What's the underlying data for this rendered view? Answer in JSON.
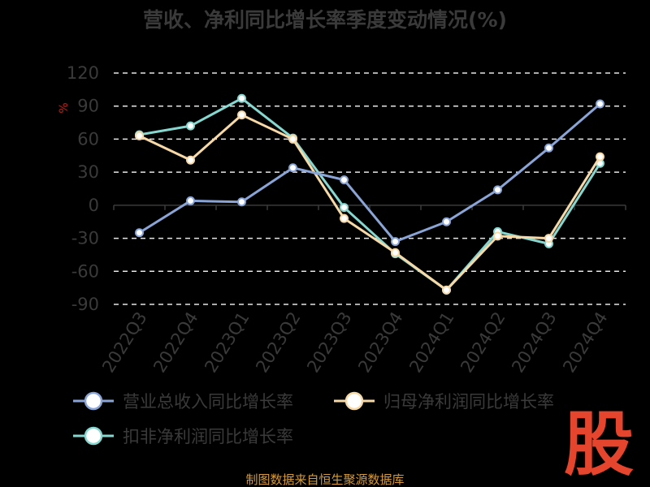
{
  "chart_data": {
    "type": "line",
    "title": "营收、净利同比增长率季度变动情况(%)",
    "unit_label": "%",
    "categories": [
      "2022Q3",
      "2022Q4",
      "2023Q1",
      "2023Q2",
      "2023Q3",
      "2023Q4",
      "2024Q1",
      "2024Q2",
      "2024Q3",
      "2024Q4"
    ],
    "yticks": [
      "120",
      "90",
      "60",
      "30",
      "0",
      "-30",
      "-60",
      "-90"
    ],
    "ylim": [
      -90,
      120
    ],
    "grid": true,
    "legend_position": "bottom",
    "series": [
      {
        "name": "营业总收入同比增长率",
        "color": "#8aa4d6",
        "values": [
          -25,
          4,
          3,
          34,
          23,
          -33,
          -15,
          14,
          52,
          92
        ]
      },
      {
        "name": "归母净利润同比增长率",
        "color": "#f7d9a8",
        "values": [
          63,
          41,
          82,
          60,
          -12,
          -43,
          -77,
          -28,
          -30,
          44
        ]
      },
      {
        "name": "扣非净利润同比增长率",
        "color": "#86d7d0",
        "values": [
          64,
          72,
          97,
          61,
          -2,
          -44,
          -77,
          -24,
          -35,
          38
        ]
      }
    ]
  },
  "footer": {
    "source": "制图数据来自恒生聚源数据库"
  },
  "watermark": {
    "text": "股"
  }
}
